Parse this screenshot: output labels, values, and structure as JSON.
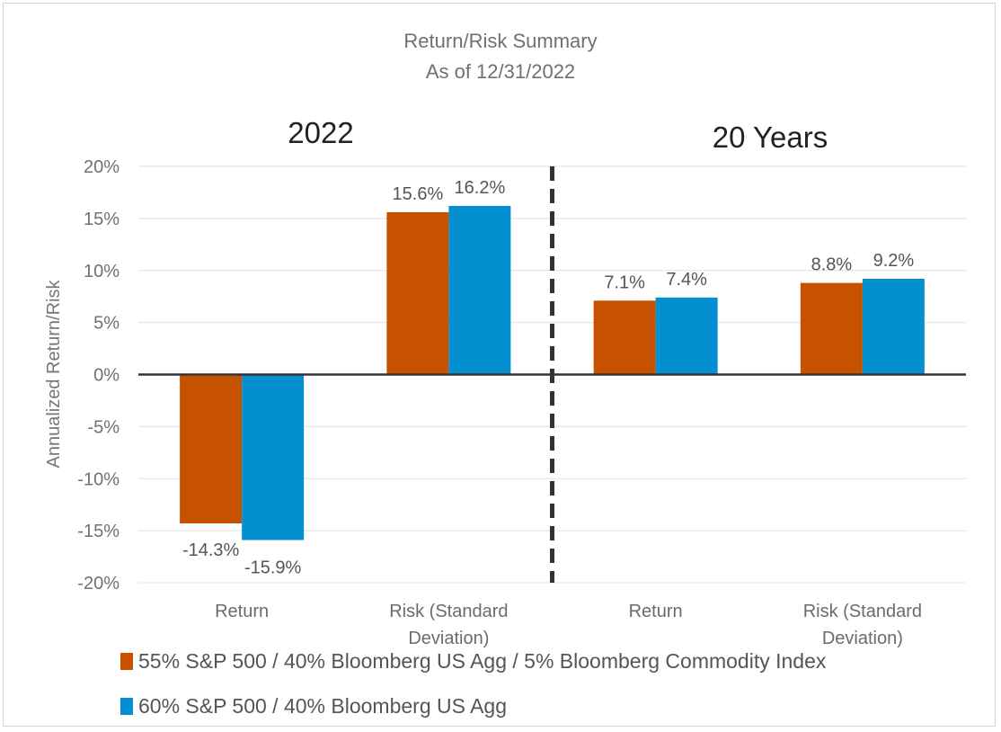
{
  "colors": {
    "series1": "#C65200",
    "series2": "#0490D0",
    "grid": "#e6e6e6",
    "zero_line": "#333333",
    "divider": "#333333"
  },
  "chart_data": {
    "type": "bar",
    "title": "Return/Risk Summary",
    "subtitle": "As of 12/31/2022",
    "ylabel": "Annualized Return/Risk",
    "ylim": [
      -20,
      20
    ],
    "yticks": [
      20,
      15,
      10,
      5,
      0,
      -5,
      -10,
      -15,
      -20
    ],
    "ytick_labels": [
      "20%",
      "15%",
      "10%",
      "5%",
      "0%",
      "-5%",
      "-10%",
      "-15%",
      "-20%"
    ],
    "grid": true,
    "legend_position": "bottom-left",
    "panels": [
      {
        "label": "2022",
        "categories": [
          [
            "Return"
          ],
          [
            "Risk (Standard",
            "Deviation)"
          ]
        ]
      },
      {
        "label": "20 Years",
        "categories": [
          [
            "Return"
          ],
          [
            "Risk (Standard",
            "Deviation)"
          ]
        ]
      }
    ],
    "categories": [
      "Return",
      "Risk (Standard Deviation)",
      "Return",
      "Risk (Standard Deviation)"
    ],
    "series": [
      {
        "name": "55% S&P 500 / 40% Bloomberg US Agg / 5% Bloomberg Commodity Index",
        "values": [
          -14.3,
          15.6,
          7.1,
          8.8
        ],
        "labels": [
          "-14.3%",
          "15.6%",
          "7.1%",
          "8.8%"
        ]
      },
      {
        "name": "60% S&P 500 / 40% Bloomberg US Agg",
        "values": [
          -15.9,
          16.2,
          7.4,
          9.2
        ],
        "labels": [
          "-15.9%",
          "16.2%",
          "7.4%",
          "9.2%"
        ]
      }
    ]
  }
}
